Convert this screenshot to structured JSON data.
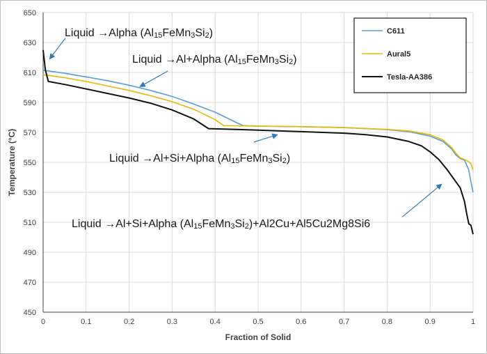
{
  "chart_data": {
    "type": "line",
    "xlabel": "Fraction of Solid",
    "ylabel": "Temperature (°C)",
    "xlim": [
      0,
      1
    ],
    "ylim": [
      450,
      650
    ],
    "xticks": [
      0,
      0.1,
      0.2,
      0.3,
      0.4,
      0.5,
      0.6,
      0.7,
      0.8,
      0.9,
      1
    ],
    "xtick_labels": [
      "0",
      "0.1",
      "0.2",
      "0.3",
      "0.4",
      "0.5",
      "0.6",
      "0.7",
      "0.8",
      "0.9",
      "1"
    ],
    "yticks": [
      450,
      470,
      490,
      510,
      530,
      550,
      570,
      590,
      610,
      630,
      650
    ],
    "ytick_labels": [
      "450",
      "470",
      "490",
      "510",
      "530",
      "550",
      "570",
      "590",
      "610",
      "630",
      "650"
    ],
    "grid": true,
    "legend_position": "top-right",
    "series": [
      {
        "name": "C611",
        "color": "#5b9bd5",
        "points": [
          [
            0,
            611.5
          ],
          [
            0.05,
            609.5
          ],
          [
            0.1,
            607
          ],
          [
            0.15,
            604.5
          ],
          [
            0.2,
            601.5
          ],
          [
            0.25,
            598
          ],
          [
            0.3,
            594
          ],
          [
            0.35,
            589
          ],
          [
            0.4,
            583.5
          ],
          [
            0.45,
            576.5
          ],
          [
            0.465,
            574.5
          ],
          [
            0.5,
            574.2
          ],
          [
            0.6,
            573.8
          ],
          [
            0.7,
            573.2
          ],
          [
            0.8,
            571.8
          ],
          [
            0.85,
            570.5
          ],
          [
            0.9,
            567.5
          ],
          [
            0.93,
            564
          ],
          [
            0.95,
            559
          ],
          [
            0.96,
            555
          ],
          [
            0.97,
            552.5
          ],
          [
            0.98,
            551.5
          ],
          [
            0.99,
            545
          ],
          [
            0.995,
            537
          ],
          [
            1.0,
            530
          ]
        ]
      },
      {
        "name": "Aural5",
        "color": "#e6b800",
        "points": [
          [
            0,
            608.5
          ],
          [
            0.05,
            606.5
          ],
          [
            0.1,
            604
          ],
          [
            0.15,
            601
          ],
          [
            0.2,
            598
          ],
          [
            0.25,
            594.5
          ],
          [
            0.3,
            590.5
          ],
          [
            0.35,
            585.5
          ],
          [
            0.4,
            578.5
          ],
          [
            0.42,
            574.5
          ],
          [
            0.5,
            574.2
          ],
          [
            0.6,
            573.8
          ],
          [
            0.7,
            573.2
          ],
          [
            0.8,
            572
          ],
          [
            0.85,
            571
          ],
          [
            0.9,
            568.5
          ],
          [
            0.93,
            565
          ],
          [
            0.95,
            560
          ],
          [
            0.96,
            556
          ],
          [
            0.97,
            553
          ],
          [
            0.98,
            552
          ],
          [
            0.99,
            550.5
          ],
          [
            0.995,
            549
          ],
          [
            1.0,
            545
          ]
        ]
      },
      {
        "name": "Tesla-AA386",
        "color": "#111111",
        "points": [
          [
            0,
            625
          ],
          [
            0.005,
            612
          ],
          [
            0.012,
            604
          ],
          [
            0.05,
            602
          ],
          [
            0.1,
            599
          ],
          [
            0.15,
            596
          ],
          [
            0.2,
            593
          ],
          [
            0.25,
            589.5
          ],
          [
            0.3,
            585
          ],
          [
            0.35,
            579
          ],
          [
            0.385,
            572.5
          ],
          [
            0.45,
            572
          ],
          [
            0.5,
            571.5
          ],
          [
            0.6,
            570.5
          ],
          [
            0.7,
            569.5
          ],
          [
            0.75,
            568.5
          ],
          [
            0.8,
            567
          ],
          [
            0.85,
            564
          ],
          [
            0.88,
            561
          ],
          [
            0.9,
            557
          ],
          [
            0.92,
            552
          ],
          [
            0.94,
            545
          ],
          [
            0.96,
            537
          ],
          [
            0.97,
            533
          ],
          [
            0.98,
            524
          ],
          [
            0.985,
            516
          ],
          [
            0.99,
            509
          ],
          [
            0.995,
            508
          ],
          [
            1.0,
            502
          ]
        ]
      }
    ],
    "annotations": [
      {
        "parts": [
          {
            "t": "Liquid →Alpha (Al",
            "sub": false
          },
          {
            "t": "15",
            "sub": true
          },
          {
            "t": "FeMn",
            "sub": false
          },
          {
            "t": "3",
            "sub": true
          },
          {
            "t": "Si",
            "sub": false
          },
          {
            "t": "2",
            "sub": true
          },
          {
            "t": ")",
            "sub": false
          }
        ],
        "arrow_from": [
          0.052,
          633
        ],
        "arrow_to": [
          0.015,
          619
        ]
      },
      {
        "parts": [
          {
            "t": "Liquid →Al+Alpha (Al",
            "sub": false
          },
          {
            "t": "15",
            "sub": true
          },
          {
            "t": "FeMn",
            "sub": false
          },
          {
            "t": "3",
            "sub": true
          },
          {
            "t": "Si",
            "sub": false
          },
          {
            "t": "2",
            "sub": true
          },
          {
            "t": ")",
            "sub": false
          }
        ],
        "arrow_from": [
          0.29,
          611
        ],
        "arrow_to": [
          0.225,
          600.5
        ]
      },
      {
        "parts": [
          {
            "t": "Liquid →Al+Si+Alpha (Al",
            "sub": false
          },
          {
            "t": "15",
            "sub": true
          },
          {
            "t": "FeMn",
            "sub": false
          },
          {
            "t": "3",
            "sub": true
          },
          {
            "t": "Si",
            "sub": false
          },
          {
            "t": "2",
            "sub": true
          },
          {
            "t": ")",
            "sub": false
          }
        ],
        "arrow_from": [
          0.49,
          563.5
        ],
        "arrow_to": [
          0.545,
          568.5
        ]
      },
      {
        "parts": [
          {
            "t": "Liquid →Al+Si+Alpha (Al",
            "sub": false
          },
          {
            "t": "15",
            "sub": true
          },
          {
            "t": "FeMn",
            "sub": false
          },
          {
            "t": "3",
            "sub": true
          },
          {
            "t": "Si",
            "sub": false
          },
          {
            "t": "2",
            "sub": true
          },
          {
            "t": ")+Al2Cu+Al5Cu2Mg8Si6",
            "sub": false
          }
        ],
        "arrow_from": [
          0.835,
          513.5
        ],
        "arrow_to": [
          0.927,
          535.5
        ]
      }
    ]
  }
}
